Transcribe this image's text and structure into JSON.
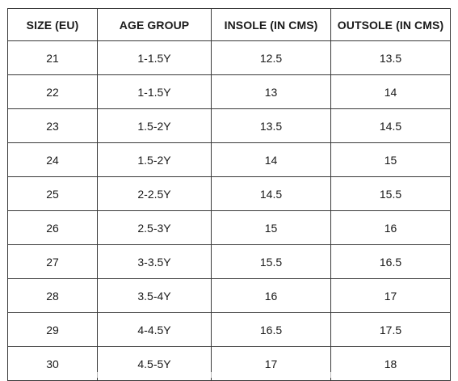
{
  "table": {
    "headers": [
      "SIZE (EU)",
      "AGE GROUP",
      "INSOLE (IN CMS)",
      "OUTSOLE (IN CMS)"
    ],
    "rows": [
      [
        "21",
        "1-1.5Y",
        "12.5",
        "13.5"
      ],
      [
        "22",
        "1-1.5Y",
        "13",
        "14"
      ],
      [
        "23",
        "1.5-2Y",
        "13.5",
        "14.5"
      ],
      [
        "24",
        "1.5-2Y",
        "14",
        "15"
      ],
      [
        "25",
        "2-2.5Y",
        "14.5",
        "15.5"
      ],
      [
        "26",
        "2.5-3Y",
        "15",
        "16"
      ],
      [
        "27",
        "3-3.5Y",
        "15.5",
        "16.5"
      ],
      [
        "28",
        "3.5-4Y",
        "16",
        "17"
      ],
      [
        "29",
        "4-4.5Y",
        "16.5",
        "17.5"
      ],
      [
        "30",
        "4.5-5Y",
        "17",
        "18"
      ]
    ]
  }
}
